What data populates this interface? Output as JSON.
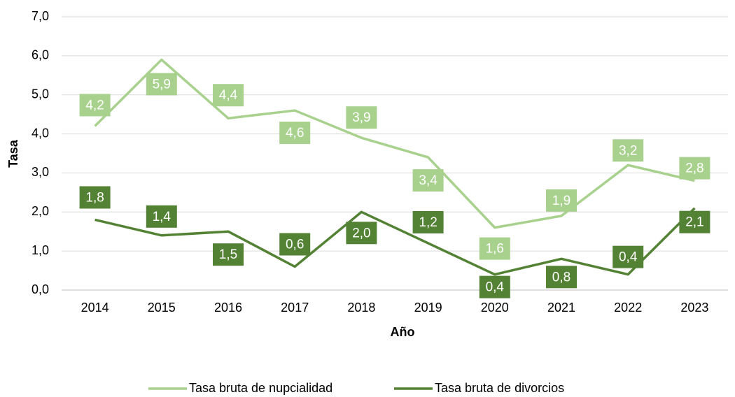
{
  "chart_data": {
    "type": "line",
    "x_label": "Año",
    "y_label": "Tasa",
    "categories": [
      "2014",
      "2015",
      "2016",
      "2017",
      "2018",
      "2019",
      "2020",
      "2021",
      "2022",
      "2023"
    ],
    "series": [
      {
        "name": "Tasa bruta de nupcialidad",
        "color": "#a9d18e",
        "values": [
          4.2,
          5.9,
          4.4,
          4.6,
          3.9,
          3.4,
          1.6,
          1.9,
          3.2,
          2.8
        ],
        "value_labels": [
          "4,2",
          "5,9",
          "4,4",
          "4,6",
          "3,9",
          "3,4",
          "1,6",
          "1,9",
          "3,2",
          "2,8"
        ]
      },
      {
        "name": "Tasa bruta de divorcios",
        "color": "#548235",
        "values": [
          1.8,
          1.4,
          1.5,
          0.6,
          2.0,
          1.2,
          0.4,
          0.8,
          0.4,
          2.1
        ],
        "value_labels": [
          "1,8",
          "1,4",
          "1,5",
          "0,6",
          "2,0",
          "1,2",
          "0,4",
          "0,8",
          "0,4",
          "2,1"
        ]
      }
    ],
    "ylim": [
      0,
      7
    ],
    "yticks": [
      {
        "value": 0,
        "label": "0,0"
      },
      {
        "value": 1,
        "label": "1,0"
      },
      {
        "value": 2,
        "label": "2,0"
      },
      {
        "value": 3,
        "label": "3,0"
      },
      {
        "value": 4,
        "label": "4,0"
      },
      {
        "value": 5,
        "label": "5,0"
      },
      {
        "value": 6,
        "label": "6,0"
      },
      {
        "value": 7,
        "label": "7,0"
      }
    ],
    "grid": true,
    "legend": "bottom"
  }
}
